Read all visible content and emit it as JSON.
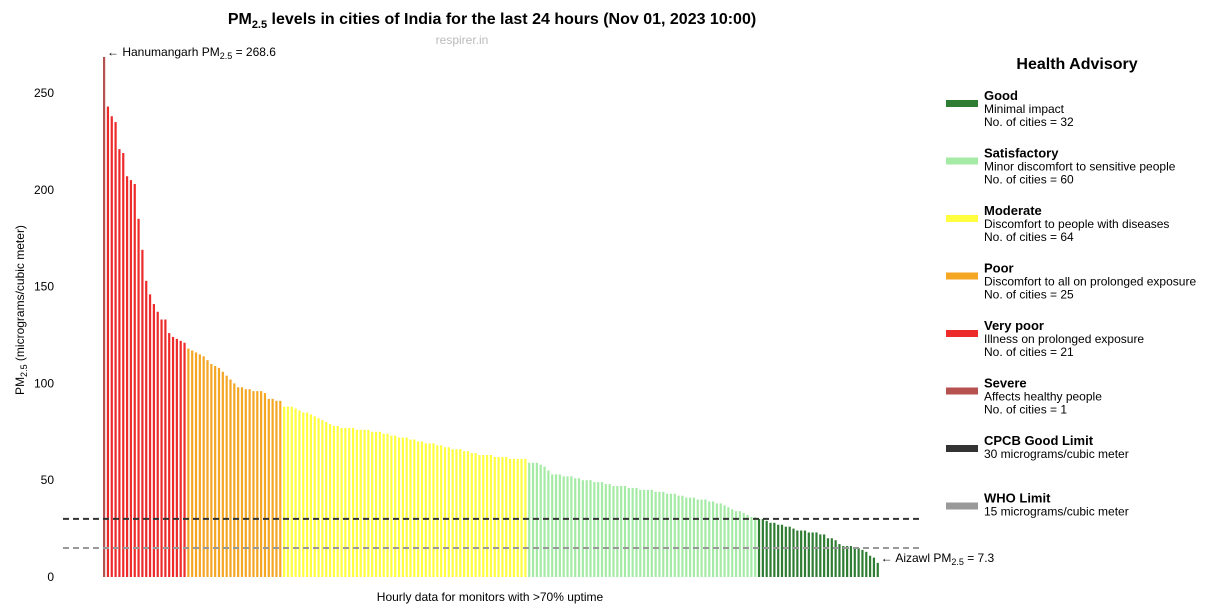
{
  "chart_data": {
    "type": "bar",
    "title": {
      "main": "PM",
      "sub": "2.5",
      "rest": " levels in cities of India for the last 24 hours (Nov 01, 2023 10:00)"
    },
    "subtitle": "respirer.in",
    "y_label": {
      "main": "PM",
      "sub": "2.5",
      "rest": " (micrograms/cubic meter)"
    },
    "x_label": "Hourly data for monitors with >70% uptime",
    "legend_title": "Health Advisory",
    "ylim": [
      0,
      280
    ],
    "yticks": [
      0,
      50,
      100,
      150,
      200,
      250
    ],
    "grid": false,
    "series": [
      {
        "name": "Good",
        "description": "Minimal impact",
        "count_label": "No. of cities = 32",
        "color": "#2e7d32",
        "values": [
          30,
          30,
          29,
          28,
          28,
          27,
          27,
          26,
          26,
          25,
          24,
          24,
          24,
          23,
          23,
          23,
          22,
          22,
          20,
          20,
          19,
          17,
          16,
          16,
          16,
          15,
          15,
          14,
          13,
          11,
          10,
          7.3
        ]
      },
      {
        "name": "Satisfactory",
        "description": "Minor discomfort to sensitive people",
        "count_label": "No. of cities = 60",
        "color": "#a5eba5",
        "values": [
          59,
          59,
          59,
          58,
          57,
          55,
          53,
          53,
          53,
          52,
          52,
          52,
          51,
          51,
          50,
          50,
          50,
          49,
          49,
          49,
          48,
          48,
          47,
          47,
          47,
          47,
          46,
          46,
          46,
          45,
          45,
          45,
          45,
          44,
          44,
          44,
          43,
          43,
          43,
          42,
          42,
          41,
          41,
          41,
          40,
          40,
          40,
          39,
          39,
          38,
          38,
          37,
          36,
          35,
          34,
          34,
          33,
          32,
          31,
          31
        ]
      },
      {
        "name": "Moderate",
        "description": "Discomfort to people with diseases",
        "count_label": "No. of cities = 64",
        "color": "#ffff40",
        "values": [
          88,
          88,
          88,
          87,
          86,
          85,
          85,
          84,
          83,
          82,
          81,
          80,
          79,
          78,
          78,
          77,
          77,
          77,
          77,
          76,
          76,
          76,
          76,
          75,
          75,
          75,
          74,
          74,
          73,
          73,
          72,
          72,
          72,
          71,
          71,
          70,
          70,
          69,
          69,
          69,
          68,
          68,
          67,
          67,
          66,
          66,
          66,
          65,
          65,
          64,
          64,
          63,
          63,
          63,
          63,
          62,
          62,
          62,
          62,
          61,
          61,
          61,
          61,
          61
        ]
      },
      {
        "name": "Poor",
        "description": "Discomfort to all on prolonged exposure",
        "count_label": "No. of cities = 25",
        "color": "#f5a623",
        "values": [
          118,
          117,
          116,
          115,
          114,
          112,
          110,
          109,
          108,
          106,
          104,
          102,
          100,
          98,
          98,
          97,
          97,
          96,
          96,
          96,
          95,
          92,
          92,
          91,
          91
        ]
      },
      {
        "name": "Very poor",
        "description": "Illness on prolonged exposure",
        "count_label": "No. of cities = 21",
        "color": "#ee2b2b",
        "values": [
          243,
          238,
          235,
          221,
          219,
          207,
          205,
          203,
          185,
          169,
          153,
          146,
          141,
          137,
          133,
          133,
          126,
          124,
          123,
          122,
          121
        ]
      },
      {
        "name": "Severe",
        "description": "Affects healthy people",
        "count_label": "No. of cities = 1",
        "color": "#b5524f",
        "values": [
          268.6
        ]
      }
    ],
    "reference_lines": [
      {
        "name": "CPCB Good Limit",
        "description": "30 micrograms/cubic meter",
        "value": 30,
        "color": "#333333"
      },
      {
        "name": "WHO Limit",
        "description": "15 micrograms/cubic meter",
        "value": 15,
        "color": "#999999"
      }
    ],
    "annotations": [
      {
        "prefix": "← Hanumangarh PM",
        "sub": "2.5",
        "suffix": " = 268.6"
      },
      {
        "prefix": "← Aizawl PM",
        "sub": "2.5",
        "suffix": " = 7.3"
      }
    ]
  }
}
